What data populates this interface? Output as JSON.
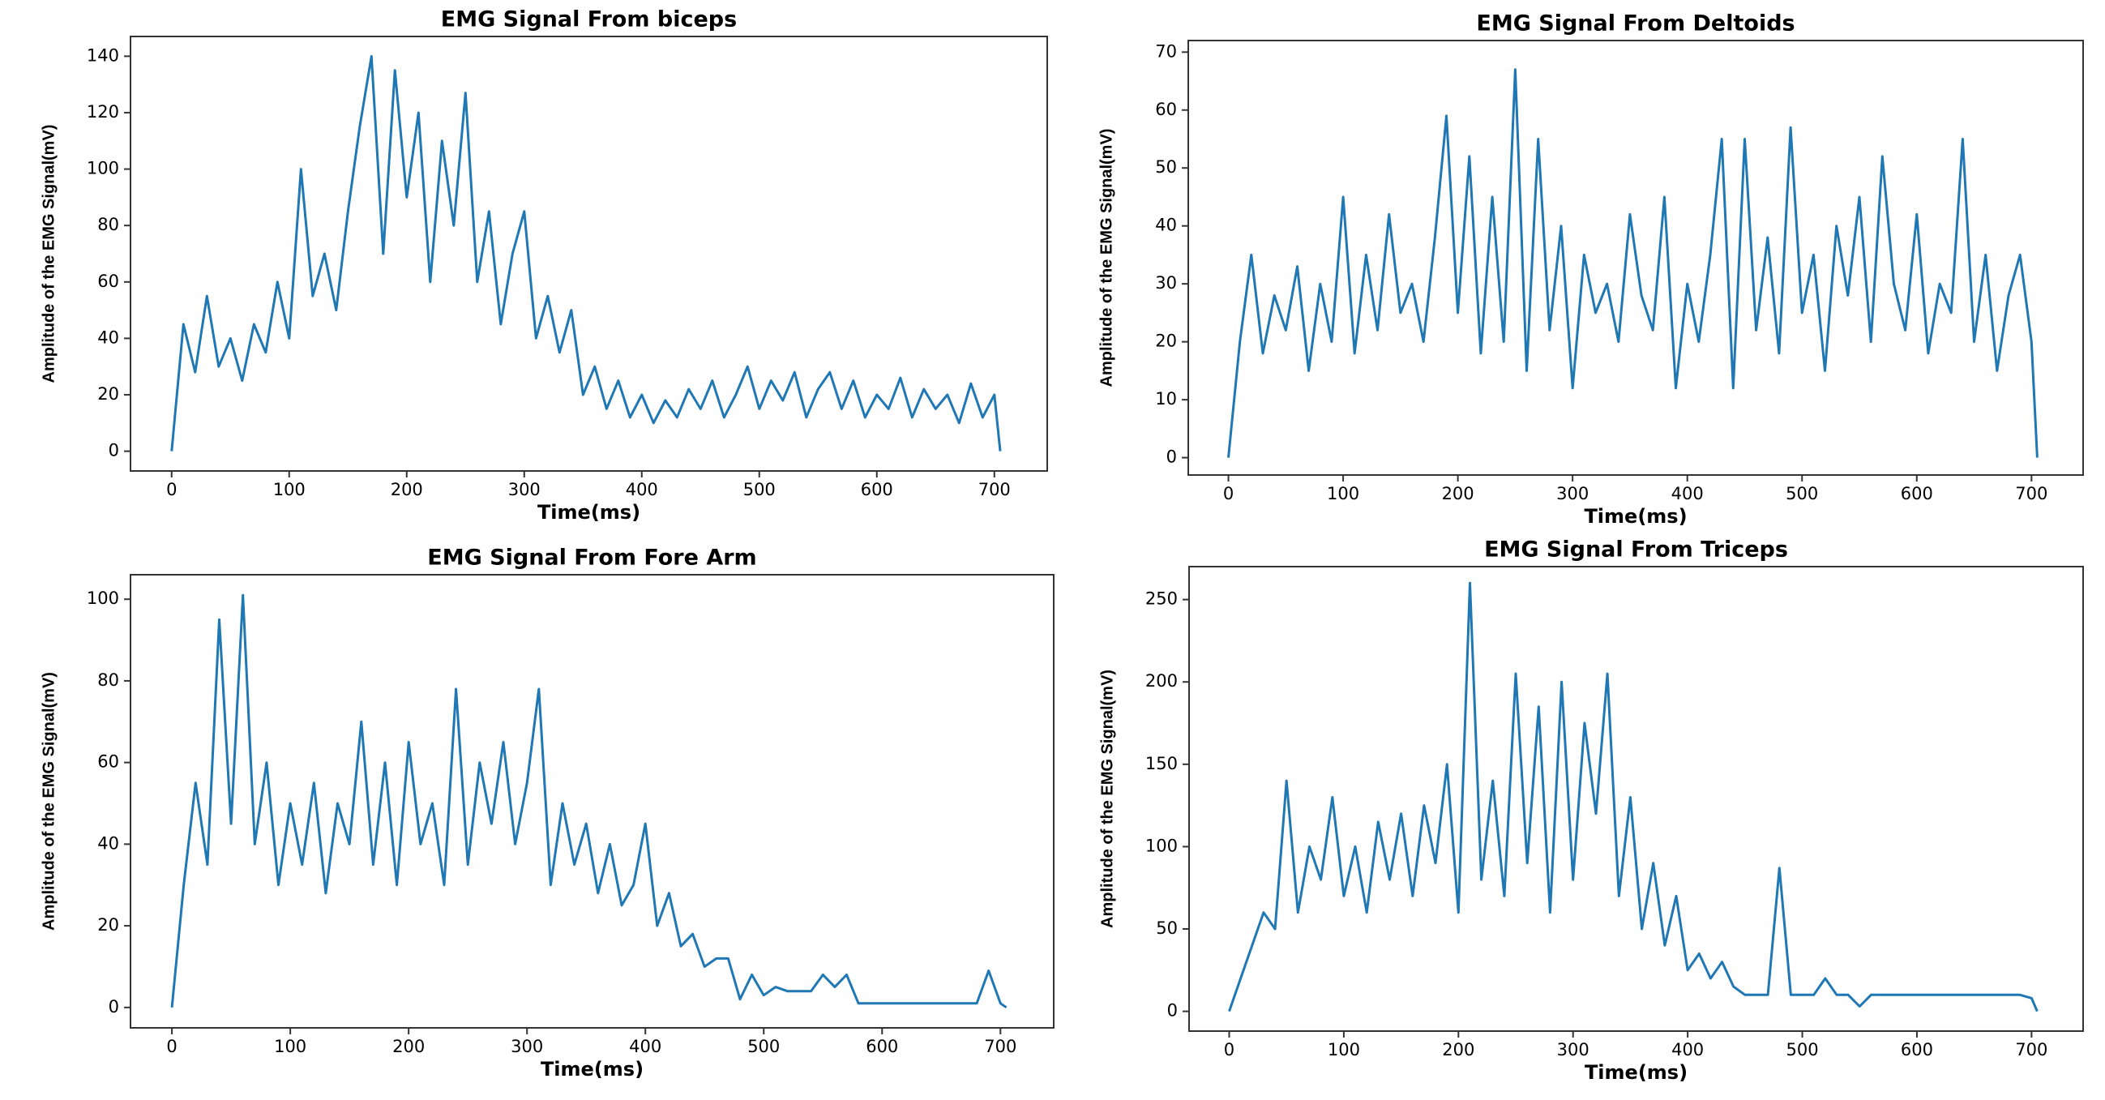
{
  "chart_data": [
    {
      "type": "line",
      "title": "EMG Signal From biceps",
      "x_label": "Time(ms)",
      "y_label": "Amplitude of the EMG Signal(mV)",
      "color": "#1f77b4",
      "x": [
        0,
        10,
        20,
        30,
        40,
        50,
        60,
        70,
        80,
        90,
        100,
        110,
        120,
        130,
        140,
        150,
        160,
        170,
        180,
        190,
        200,
        210,
        220,
        230,
        240,
        250,
        260,
        270,
        280,
        290,
        300,
        310,
        320,
        330,
        340,
        350,
        360,
        370,
        380,
        390,
        400,
        410,
        420,
        430,
        440,
        450,
        460,
        470,
        480,
        490,
        500,
        510,
        520,
        530,
        540,
        550,
        560,
        570,
        580,
        590,
        600,
        610,
        620,
        630,
        640,
        650,
        660,
        670,
        680,
        690,
        700,
        705
      ],
      "values": [
        0,
        45,
        28,
        55,
        30,
        40,
        25,
        45,
        35,
        60,
        40,
        100,
        55,
        70,
        50,
        85,
        115,
        140,
        70,
        135,
        90,
        120,
        60,
        110,
        80,
        127,
        60,
        85,
        45,
        70,
        85,
        40,
        55,
        35,
        50,
        20,
        30,
        15,
        25,
        12,
        20,
        10,
        18,
        12,
        22,
        15,
        25,
        12,
        20,
        30,
        15,
        25,
        18,
        28,
        12,
        22,
        28,
        15,
        25,
        12,
        20,
        15,
        26,
        12,
        22,
        15,
        20,
        10,
        24,
        12,
        20,
        0
      ],
      "xlim": [
        -35,
        745
      ],
      "ylim": [
        -7,
        147
      ],
      "xticks": [
        0,
        100,
        200,
        300,
        400,
        500,
        600,
        700
      ],
      "yticks": [
        0,
        20,
        40,
        60,
        80,
        100,
        120,
        140
      ]
    },
    {
      "type": "line",
      "title": "EMG Signal From Deltoids",
      "x_label": "Time(ms)",
      "y_label": "Amplitude of the EMG Signal(mV)",
      "color": "#1f77b4",
      "x": [
        0,
        10,
        20,
        30,
        40,
        50,
        60,
        70,
        80,
        90,
        100,
        110,
        120,
        130,
        140,
        150,
        160,
        170,
        180,
        190,
        200,
        210,
        220,
        230,
        240,
        250,
        260,
        270,
        280,
        290,
        300,
        310,
        320,
        330,
        340,
        350,
        360,
        370,
        380,
        390,
        400,
        410,
        420,
        430,
        440,
        450,
        460,
        470,
        480,
        490,
        500,
        510,
        520,
        530,
        540,
        550,
        560,
        570,
        580,
        590,
        600,
        610,
        620,
        630,
        640,
        650,
        660,
        670,
        680,
        690,
        700,
        705
      ],
      "values": [
        0,
        20,
        35,
        18,
        28,
        22,
        33,
        15,
        30,
        20,
        45,
        18,
        35,
        22,
        42,
        25,
        30,
        20,
        38,
        59,
        25,
        52,
        18,
        45,
        20,
        67,
        15,
        55,
        22,
        40,
        12,
        35,
        25,
        30,
        20,
        42,
        28,
        22,
        45,
        12,
        30,
        20,
        35,
        55,
        12,
        55,
        22,
        38,
        18,
        57,
        25,
        35,
        15,
        40,
        28,
        45,
        20,
        52,
        30,
        22,
        42,
        18,
        30,
        25,
        55,
        20,
        35,
        15,
        28,
        35,
        20,
        0
      ],
      "xlim": [
        -35,
        745
      ],
      "ylim": [
        -3,
        72
      ],
      "xticks": [
        0,
        100,
        200,
        300,
        400,
        500,
        600,
        700
      ],
      "yticks": [
        0,
        10,
        20,
        30,
        40,
        50,
        60,
        70
      ]
    },
    {
      "type": "line",
      "title": "EMG Signal From Fore Arm",
      "x_label": "Time(ms)",
      "y_label": "Amplitude of the EMG Signal(mV)",
      "color": "#1f77b4",
      "x": [
        0,
        10,
        20,
        30,
        40,
        50,
        60,
        70,
        80,
        90,
        100,
        110,
        120,
        130,
        140,
        150,
        160,
        170,
        180,
        190,
        200,
        210,
        220,
        230,
        240,
        250,
        260,
        270,
        280,
        290,
        300,
        310,
        320,
        330,
        340,
        350,
        360,
        370,
        380,
        390,
        400,
        410,
        420,
        430,
        440,
        450,
        460,
        470,
        480,
        490,
        500,
        510,
        520,
        530,
        540,
        550,
        560,
        570,
        580,
        590,
        600,
        610,
        620,
        630,
        640,
        650,
        660,
        670,
        680,
        690,
        700,
        705
      ],
      "values": [
        0,
        30,
        55,
        35,
        95,
        45,
        101,
        40,
        60,
        30,
        50,
        35,
        55,
        28,
        50,
        40,
        70,
        35,
        60,
        30,
        65,
        40,
        50,
        30,
        78,
        35,
        60,
        45,
        65,
        40,
        55,
        78,
        30,
        50,
        35,
        45,
        28,
        40,
        25,
        30,
        45,
        20,
        28,
        15,
        18,
        10,
        12,
        12,
        2,
        8,
        3,
        5,
        4,
        4,
        4,
        8,
        5,
        8,
        1,
        1,
        1,
        1,
        1,
        1,
        1,
        1,
        1,
        1,
        1,
        9,
        1,
        0
      ],
      "xlim": [
        -35,
        745
      ],
      "ylim": [
        -5,
        106
      ],
      "xticks": [
        0,
        100,
        200,
        300,
        400,
        500,
        600,
        700
      ],
      "yticks": [
        0,
        20,
        40,
        60,
        80,
        100
      ]
    },
    {
      "type": "line",
      "title": "EMG Signal From Triceps",
      "x_label": "Time(ms)",
      "y_label": "Amplitude of the EMG Signal(mV)",
      "color": "#1f77b4",
      "x": [
        0,
        10,
        20,
        30,
        40,
        50,
        60,
        70,
        80,
        90,
        100,
        110,
        120,
        130,
        140,
        150,
        160,
        170,
        180,
        190,
        200,
        210,
        220,
        230,
        240,
        250,
        260,
        270,
        280,
        290,
        300,
        310,
        320,
        330,
        340,
        350,
        360,
        370,
        380,
        390,
        400,
        410,
        420,
        430,
        440,
        450,
        460,
        470,
        480,
        490,
        500,
        510,
        520,
        530,
        540,
        550,
        560,
        570,
        580,
        590,
        600,
        610,
        620,
        630,
        640,
        650,
        660,
        670,
        680,
        690,
        700,
        705
      ],
      "values": [
        0,
        20,
        40,
        60,
        50,
        140,
        60,
        100,
        80,
        130,
        70,
        100,
        60,
        115,
        80,
        120,
        70,
        125,
        90,
        150,
        60,
        260,
        80,
        140,
        70,
        205,
        90,
        185,
        60,
        200,
        80,
        175,
        120,
        205,
        70,
        130,
        50,
        90,
        40,
        70,
        25,
        35,
        20,
        30,
        15,
        10,
        10,
        10,
        87,
        10,
        10,
        10,
        20,
        10,
        10,
        3,
        10,
        10,
        10,
        10,
        10,
        10,
        10,
        10,
        10,
        10,
        10,
        10,
        10,
        10,
        8,
        0
      ],
      "xlim": [
        -35,
        745
      ],
      "ylim": [
        -12,
        270
      ],
      "xticks": [
        0,
        100,
        200,
        300,
        400,
        500,
        600,
        700
      ],
      "yticks": [
        0,
        50,
        100,
        150,
        200,
        250
      ]
    }
  ]
}
